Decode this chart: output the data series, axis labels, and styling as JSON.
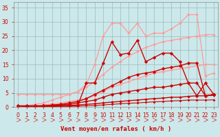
{
  "bg_color": "#cce8ea",
  "grid_color": "#99bbbb",
  "xlabel": "Vent moyen/en rafales ( km/h )",
  "xlim": [
    -0.5,
    23.5
  ],
  "ylim": [
    0,
    37
  ],
  "xticks": [
    0,
    1,
    2,
    3,
    4,
    5,
    6,
    7,
    8,
    9,
    10,
    11,
    12,
    13,
    14,
    15,
    16,
    17,
    18,
    19,
    20,
    21,
    22,
    23
  ],
  "yticks": [
    0,
    5,
    10,
    15,
    20,
    25,
    30,
    35
  ],
  "lines": [
    {
      "x": [
        0,
        1,
        2,
        3,
        4,
        5,
        6,
        7,
        8,
        9,
        10,
        11,
        12,
        13,
        14,
        15,
        16,
        17,
        18,
        19,
        20,
        21,
        22,
        23
      ],
      "y": [
        4.5,
        4.5,
        4.5,
        4.5,
        4.5,
        4.5,
        4.5,
        5.5,
        8.0,
        15.0,
        25.0,
        29.5,
        29.5,
        26.0,
        29.5,
        25.0,
        26.0,
        26.0,
        27.5,
        29.5,
        32.5,
        32.5,
        11.0,
        12.0
      ],
      "color": "#ff9999",
      "alpha": 1.0,
      "lw": 0.9,
      "marker": "D",
      "ms": 2.0
    },
    {
      "x": [
        0,
        1,
        2,
        3,
        4,
        5,
        6,
        7,
        8,
        9,
        10,
        11,
        12,
        13,
        14,
        15,
        16,
        17,
        18,
        19,
        20,
        21,
        22,
        23
      ],
      "y": [
        0,
        0.5,
        1.0,
        1.5,
        2.5,
        3.5,
        4.5,
        5.5,
        7.0,
        9.0,
        11.5,
        14.0,
        16.0,
        18.0,
        19.5,
        21.0,
        22.0,
        23.0,
        23.5,
        24.0,
        24.5,
        25.0,
        25.5,
        25.5
      ],
      "color": "#ff9999",
      "alpha": 1.0,
      "lw": 0.9,
      "marker": "D",
      "ms": 2.0
    },
    {
      "x": [
        0,
        1,
        2,
        3,
        4,
        5,
        6,
        7,
        8,
        9,
        10,
        11,
        12,
        13,
        14,
        15,
        16,
        17,
        18,
        19,
        20,
        21,
        22,
        23
      ],
      "y": [
        0,
        0.3,
        0.5,
        0.8,
        1.2,
        1.5,
        2.0,
        2.5,
        3.0,
        4.0,
        5.5,
        7.0,
        8.0,
        9.0,
        10.0,
        11.0,
        12.0,
        12.5,
        13.0,
        13.5,
        14.0,
        14.5,
        15.0,
        15.0
      ],
      "color": "#ff9999",
      "alpha": 1.0,
      "lw": 0.9,
      "marker": "D",
      "ms": 2.0
    },
    {
      "x": [
        0,
        1,
        2,
        3,
        4,
        5,
        6,
        7,
        8,
        9,
        10,
        11,
        12,
        13,
        14,
        15,
        16,
        17,
        18,
        19,
        20,
        21,
        22,
        23
      ],
      "y": [
        0.5,
        0.5,
        0.5,
        0.5,
        0.5,
        0.5,
        0.5,
        0.5,
        8.5,
        8.5,
        15.5,
        23.0,
        18.5,
        19.0,
        23.5,
        16.0,
        17.5,
        19.0,
        19.0,
        16.0,
        8.5,
        4.0,
        8.5,
        4.5
      ],
      "color": "#cc0000",
      "alpha": 1.0,
      "lw": 1.0,
      "marker": "D",
      "ms": 2.5
    },
    {
      "x": [
        0,
        1,
        2,
        3,
        4,
        5,
        6,
        7,
        8,
        9,
        10,
        11,
        12,
        13,
        14,
        15,
        16,
        17,
        18,
        19,
        20,
        21,
        22,
        23
      ],
      "y": [
        0,
        0.2,
        0.3,
        0.5,
        0.8,
        1.0,
        1.5,
        2.0,
        3.0,
        4.5,
        6.0,
        7.5,
        9.0,
        10.5,
        11.5,
        12.0,
        12.5,
        13.5,
        14.0,
        14.5,
        15.5,
        15.5,
        4.0,
        4.5
      ],
      "color": "#cc0000",
      "alpha": 1.0,
      "lw": 1.0,
      "marker": "D",
      "ms": 2.5
    },
    {
      "x": [
        0,
        1,
        2,
        3,
        4,
        5,
        6,
        7,
        8,
        9,
        10,
        11,
        12,
        13,
        14,
        15,
        16,
        17,
        18,
        19,
        20,
        21,
        22,
        23
      ],
      "y": [
        0,
        0.2,
        0.3,
        0.4,
        0.6,
        0.8,
        1.0,
        1.5,
        2.0,
        2.5,
        3.5,
        4.5,
        5.0,
        5.5,
        6.0,
        6.5,
        7.0,
        7.0,
        7.5,
        8.0,
        8.5,
        8.5,
        4.0,
        4.5
      ],
      "color": "#cc0000",
      "alpha": 1.0,
      "lw": 1.0,
      "marker": "D",
      "ms": 2.5
    },
    {
      "x": [
        0,
        1,
        2,
        3,
        4,
        5,
        6,
        7,
        8,
        9,
        10,
        11,
        12,
        13,
        14,
        15,
        16,
        17,
        18,
        19,
        20,
        21,
        22,
        23
      ],
      "y": [
        0,
        0.1,
        0.2,
        0.3,
        0.4,
        0.5,
        0.6,
        0.8,
        1.0,
        1.2,
        1.5,
        1.8,
        2.0,
        2.3,
        2.5,
        2.8,
        3.0,
        3.2,
        3.5,
        3.5,
        3.8,
        4.0,
        4.0,
        4.2
      ],
      "color": "#cc0000",
      "alpha": 1.0,
      "lw": 1.0,
      "marker": "D",
      "ms": 2.0
    },
    {
      "x": [
        0,
        1,
        2,
        3,
        4,
        5,
        6,
        7,
        8,
        9,
        10,
        11,
        12,
        13,
        14,
        15,
        16,
        17,
        18,
        19,
        20,
        21,
        22,
        23
      ],
      "y": [
        0,
        0.1,
        0.1,
        0.2,
        0.2,
        0.3,
        0.3,
        0.4,
        0.5,
        0.6,
        0.8,
        1.0,
        1.2,
        1.4,
        1.5,
        1.7,
        1.9,
        2.0,
        2.2,
        2.3,
        2.5,
        2.5,
        2.5,
        2.6
      ],
      "color": "#cc0000",
      "alpha": 1.0,
      "lw": 0.8,
      "marker": "D",
      "ms": 1.8
    }
  ],
  "tick_fontsize": 5.5,
  "label_fontsize": 6.5
}
